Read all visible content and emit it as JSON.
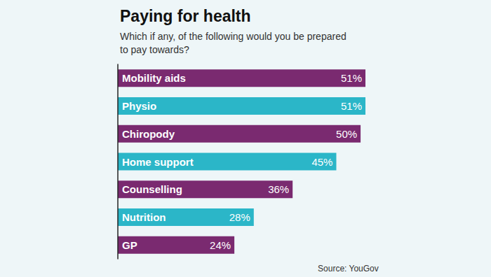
{
  "chart_data": {
    "type": "bar",
    "title": "Paying for health",
    "subtitle": "Which if any, of the following would you be prepared\nto pay towards?",
    "source": "Source: YouGov",
    "orientation": "horizontal",
    "categories": [
      "Mobility aids",
      "Physio",
      "Chiropody",
      "Home support",
      "Counselling",
      "Nutrition",
      "GP"
    ],
    "values": [
      51,
      51,
      50,
      45,
      36,
      28,
      24
    ],
    "value_labels": [
      "51%",
      "51%",
      "50%",
      "45%",
      "36%",
      "28%",
      "24%"
    ],
    "colors": [
      "#7a2a70",
      "#2bb6c8",
      "#7a2a70",
      "#2bb6c8",
      "#7a2a70",
      "#2bb6c8",
      "#7a2a70"
    ],
    "xlim": [
      0,
      51
    ],
    "grid": false,
    "data_labels": true,
    "tick_labels": false
  }
}
